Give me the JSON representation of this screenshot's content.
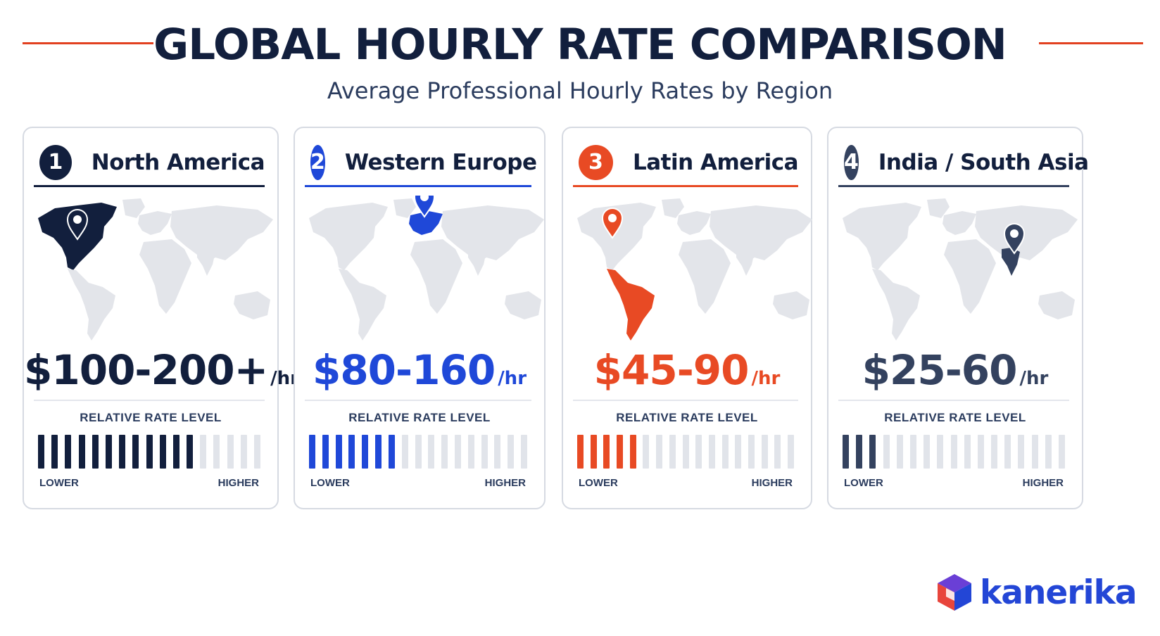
{
  "header": {
    "title": "GLOBAL HOURLY RATE COMPARISON",
    "subtitle": "Average Professional Hourly Rates by Region"
  },
  "cards": [
    {
      "number": "1",
      "region": "North America",
      "price": "$100-200+",
      "unit": "/hr",
      "rate_label": "RELATIVE RATE LEVEL",
      "low_label": "LOWER",
      "high_label": "HIGHER",
      "level_filled": 12,
      "level_total": 17,
      "accent": "#121f3d",
      "highlight": "north-america"
    },
    {
      "number": "2",
      "region": "Western Europe",
      "price": "$80-160",
      "unit": "/hr",
      "rate_label": "RELATIVE RATE LEVEL",
      "low_label": "LOWER",
      "high_label": "HIGHER",
      "level_filled": 7,
      "level_total": 17,
      "accent": "#1f48d8",
      "highlight": "europe"
    },
    {
      "number": "3",
      "region": "Latin America",
      "price": "$45-90",
      "unit": "/hr",
      "rate_label": "RELATIVE RATE LEVEL",
      "low_label": "LOWER",
      "high_label": "HIGHER",
      "level_filled": 5,
      "level_total": 17,
      "accent": "#e84a24",
      "highlight": "latin-america"
    },
    {
      "number": "4",
      "region": "India / South Asia",
      "price": "$25-60",
      "unit": "/hr",
      "rate_label": "RELATIVE RATE LEVEL",
      "low_label": "LOWER",
      "high_label": "HIGHER",
      "level_filled": 3,
      "level_total": 17,
      "accent": "#34425f",
      "highlight": "south-asia"
    }
  ],
  "brand": {
    "name": "kanerika",
    "icon": "cube-logo-icon"
  },
  "colors": {
    "title": "#121f3d",
    "header_line": "#e2401f",
    "map_base": "#e3e5ea",
    "bar_off": "#e1e4ea"
  }
}
